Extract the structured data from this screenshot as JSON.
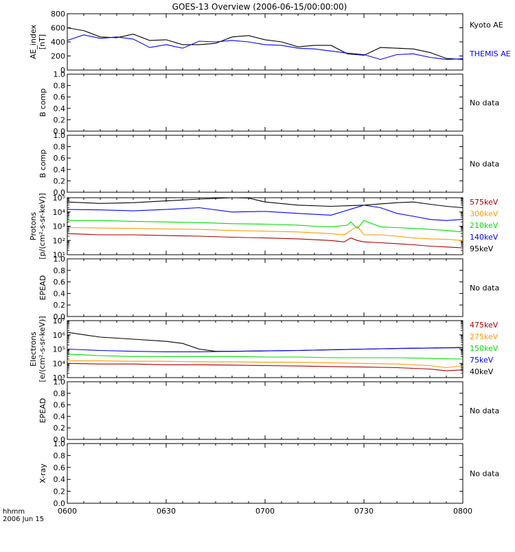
{
  "title": "GOES-13 Overview (2006-06-15/00:00:00)",
  "x_axis": {
    "tick_labels": [
      "0600",
      "0630",
      "0700",
      "0730",
      "0800"
    ],
    "unit_label": "hhmm",
    "date_label": "2006 Jun 15"
  },
  "no_data_text": "No data",
  "chart_data": [
    {
      "id": "ae",
      "type": "line",
      "ylabel": [
        "AE_index",
        "[nT]"
      ],
      "ylim": [
        0,
        800
      ],
      "y_ticks": [
        "0",
        "200",
        "400",
        "600",
        "800"
      ],
      "x_range": [
        "0600",
        "0800"
      ],
      "legend": [
        "Kyoto AE",
        "THEMIS AE"
      ],
      "series": [
        {
          "name": "Kyoto AE",
          "color": "#000000",
          "x": [
            0,
            5,
            10,
            15,
            20,
            25,
            30,
            35,
            40,
            45,
            50,
            55,
            60,
            65,
            70,
            75,
            80,
            85,
            90,
            95,
            100,
            105,
            110,
            115,
            120
          ],
          "values": [
            600,
            560,
            470,
            460,
            510,
            420,
            430,
            360,
            360,
            380,
            470,
            490,
            430,
            400,
            330,
            350,
            350,
            230,
            210,
            320,
            310,
            300,
            250,
            165,
            150
          ]
        },
        {
          "name": "THEMIS AE",
          "color": "#0000ff",
          "x": [
            0,
            5,
            10,
            15,
            20,
            25,
            30,
            35,
            40,
            45,
            50,
            55,
            60,
            65,
            70,
            75,
            80,
            85,
            90,
            95,
            100,
            105,
            110,
            115,
            120
          ],
          "values": [
            420,
            500,
            450,
            470,
            440,
            320,
            360,
            310,
            410,
            400,
            420,
            400,
            360,
            350,
            310,
            300,
            270,
            240,
            220,
            150,
            220,
            230,
            180,
            150,
            160
          ]
        }
      ]
    },
    {
      "id": "bcomp1",
      "type": "line",
      "ylabel": [
        "B comp"
      ],
      "ylim": [
        0,
        1
      ],
      "y_ticks": [
        "0.0",
        "0.2",
        "0.4",
        "0.6",
        "0.8",
        "1.0"
      ],
      "no_data": true
    },
    {
      "id": "bcomp2",
      "type": "line",
      "ylabel": [
        "B comp"
      ],
      "ylim": [
        0,
        1
      ],
      "y_ticks": [
        "0.0",
        "0.2",
        "0.4",
        "0.6",
        "0.8",
        "1.0"
      ],
      "no_data": true
    },
    {
      "id": "protons",
      "type": "line",
      "log_scale": true,
      "ylabel": [
        "Protons",
        "[p/(cm²-s-sr-keV)]"
      ],
      "ylim": [
        10,
        100000
      ],
      "y_ticks": [
        "10¹",
        "10²",
        "10³",
        "10⁴",
        "10⁵"
      ],
      "legend": [
        "575keV",
        "300keV",
        "210keV",
        "140keV",
        "95keV"
      ],
      "series": [
        {
          "name": "95keV",
          "color": "#000000",
          "x": [
            0,
            10,
            20,
            30,
            40,
            50,
            55,
            60,
            70,
            80,
            90,
            100,
            105,
            110,
            115,
            120
          ],
          "values": [
            50000,
            40000,
            45000,
            60000,
            80000,
            100000,
            95000,
            50000,
            30000,
            25000,
            30000,
            45000,
            50000,
            35000,
            25000,
            20000
          ]
        },
        {
          "name": "140keV",
          "color": "#0000ff",
          "x": [
            0,
            10,
            20,
            30,
            40,
            50,
            60,
            70,
            80,
            90,
            95,
            100,
            105,
            110,
            115,
            120
          ],
          "values": [
            15000,
            14000,
            12000,
            15000,
            20000,
            10000,
            11000,
            8000,
            6000,
            30000,
            20000,
            8000,
            5000,
            3000,
            2500,
            3000
          ]
        },
        {
          "name": "210keV",
          "color": "#00dd00",
          "x": [
            0,
            10,
            20,
            30,
            40,
            50,
            60,
            70,
            75,
            80,
            85,
            86,
            88,
            90,
            95,
            100,
            105,
            110,
            115,
            120
          ],
          "values": [
            2500,
            2500,
            2200,
            2000,
            1800,
            1500,
            1400,
            1200,
            1000,
            900,
            1200,
            2000,
            700,
            2500,
            900,
            800,
            700,
            600,
            500,
            400
          ]
        },
        {
          "name": "300keV",
          "color": "#ff9900",
          "x": [
            0,
            10,
            20,
            30,
            40,
            50,
            60,
            70,
            80,
            84,
            86,
            88,
            90,
            95,
            100,
            105,
            110,
            115,
            120
          ],
          "values": [
            800,
            750,
            700,
            650,
            600,
            500,
            450,
            400,
            300,
            250,
            500,
            1000,
            250,
            250,
            200,
            150,
            130,
            120,
            100
          ]
        },
        {
          "name": "575keV",
          "color": "#aa0000",
          "x": [
            0,
            10,
            20,
            30,
            40,
            50,
            60,
            70,
            80,
            84,
            86,
            88,
            90,
            95,
            100,
            105,
            110,
            115,
            120
          ],
          "values": [
            300,
            250,
            250,
            220,
            200,
            170,
            150,
            130,
            100,
            80,
            150,
            100,
            80,
            70,
            60,
            50,
            40,
            35,
            30
          ]
        }
      ]
    },
    {
      "id": "epead1",
      "type": "line",
      "ylabel": [
        "EPEAD"
      ],
      "ylim": [
        0,
        1
      ],
      "y_ticks": [
        "0.0",
        "0.2",
        "0.4",
        "0.6",
        "0.8",
        "1.0"
      ],
      "no_data": true
    },
    {
      "id": "electrons",
      "type": "line",
      "log_scale": true,
      "ylabel": [
        "Electrons",
        "[e/(cm²-s-sr-keV)]"
      ],
      "ylim": [
        1000,
        10000000
      ],
      "y_ticks": [
        "10³",
        "10⁴",
        "10⁵",
        "10⁶",
        "10⁷"
      ],
      "legend": [
        "475keV",
        "275keV",
        "150keV",
        "75keV",
        "40keV"
      ],
      "series": [
        {
          "name": "40keV",
          "color": "#000000",
          "x": [
            0,
            10,
            20,
            30,
            35,
            40,
            45,
            50,
            60,
            70,
            80,
            90,
            100,
            110,
            120
          ],
          "values": [
            1500000,
            700000,
            500000,
            350000,
            250000,
            100000,
            70000,
            70000,
            75000,
            80000,
            90000,
            100000,
            110000,
            120000,
            130000
          ]
        },
        {
          "name": "75keV",
          "color": "#0000ff",
          "x": [
            0,
            10,
            20,
            30,
            40,
            50,
            60,
            70,
            80,
            90,
            100,
            110,
            120
          ],
          "values": [
            100000,
            80000,
            70000,
            65000,
            65000,
            70000,
            75000,
            80000,
            90000,
            100000,
            110000,
            120000,
            125000
          ]
        },
        {
          "name": "150keV",
          "color": "#00dd00",
          "x": [
            0,
            10,
            20,
            30,
            40,
            50,
            60,
            70,
            80,
            90,
            100,
            110,
            120
          ],
          "values": [
            45000,
            35000,
            30000,
            30000,
            30000,
            30000,
            28000,
            28000,
            25000,
            25000,
            25000,
            22000,
            20000
          ]
        },
        {
          "name": "275keV",
          "color": "#ff9900",
          "x": [
            0,
            10,
            20,
            30,
            40,
            50,
            60,
            70,
            80,
            90,
            100,
            110,
            115,
            120
          ],
          "values": [
            15000,
            15000,
            14000,
            14000,
            13000,
            13000,
            12000,
            12000,
            11000,
            10000,
            9000,
            7000,
            5000,
            7000
          ]
        },
        {
          "name": "475keV",
          "color": "#aa0000",
          "x": [
            0,
            10,
            20,
            30,
            40,
            50,
            60,
            70,
            80,
            90,
            100,
            110,
            115,
            120
          ],
          "values": [
            10000,
            9000,
            9000,
            8000,
            8000,
            7500,
            7000,
            6500,
            6000,
            5500,
            5000,
            4000,
            3000,
            3500
          ]
        }
      ]
    },
    {
      "id": "epead2",
      "type": "line",
      "ylabel": [
        "EPEAD"
      ],
      "ylim": [
        0,
        1
      ],
      "y_ticks": [
        "0.0",
        "0.2",
        "0.4",
        "0.6",
        "0.8",
        "1.0"
      ],
      "no_data": true
    },
    {
      "id": "xray",
      "type": "line",
      "ylabel": [
        "X-ray"
      ],
      "ylim": [
        0,
        1
      ],
      "y_ticks": [
        "0.0",
        "0.2",
        "0.4",
        "0.6",
        "0.8",
        "1.0"
      ],
      "no_data": true
    }
  ]
}
